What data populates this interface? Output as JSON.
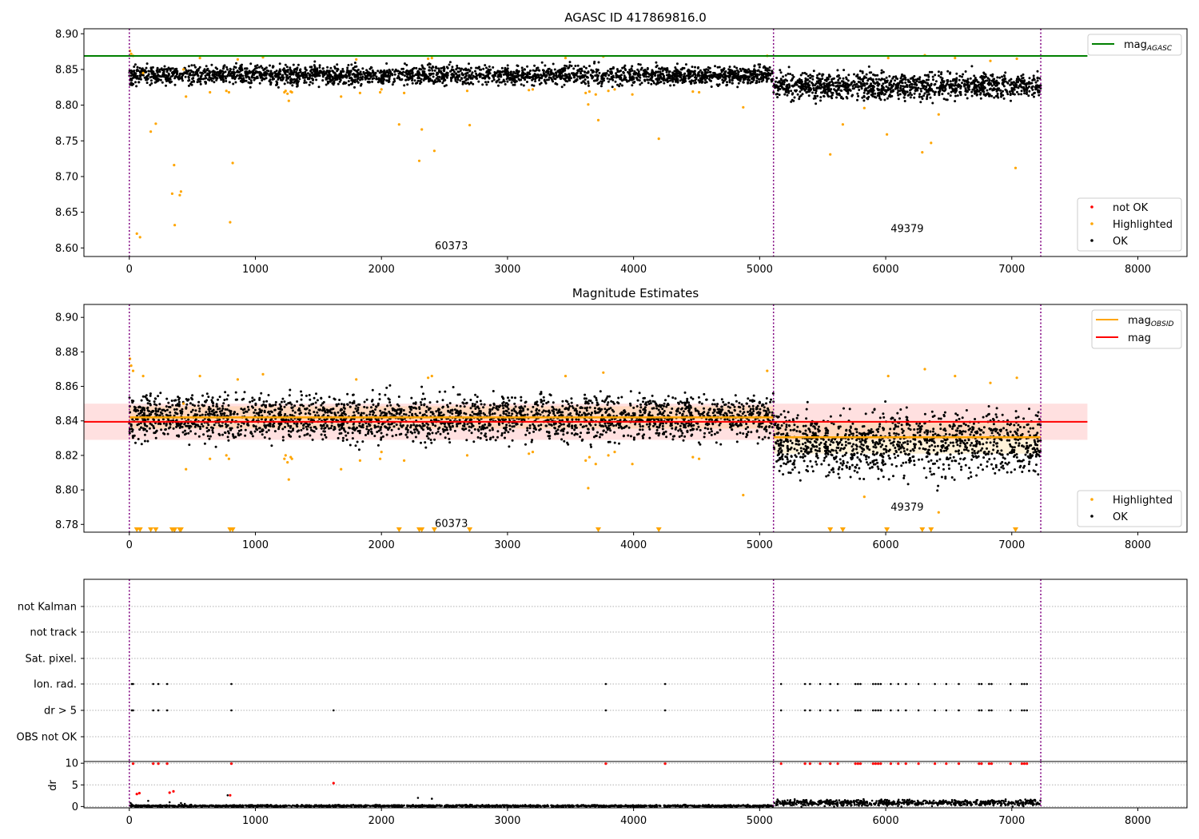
{
  "chart_data": [
    {
      "type": "scatter",
      "title": "AGASC ID 417869816.0",
      "xlim": [
        -360,
        8390
      ],
      "ylim": [
        8.588,
        8.907
      ],
      "xticks": [
        0,
        1000,
        2000,
        3000,
        4000,
        5000,
        6000,
        7000,
        8000
      ],
      "xtick_labels": [
        "0",
        "1000",
        "2000",
        "3000",
        "4000",
        "5000",
        "6000",
        "7000",
        "8000"
      ],
      "yticks": [
        8.6,
        8.65,
        8.7,
        8.75,
        8.8,
        8.85,
        8.9
      ],
      "ytick_labels": [
        "8.60",
        "8.65",
        "8.70",
        "8.75",
        "8.80",
        "8.85",
        "8.90"
      ],
      "obsid_boundaries": [
        0,
        5110,
        7230
      ],
      "obsid_labels": [
        {
          "text": "60373",
          "x": 2555,
          "y": 8.598
        },
        {
          "text": "49379",
          "x": 6170,
          "y": 8.622
        }
      ],
      "reference_line": {
        "name": "mag",
        "subscript": "AGASC",
        "y": 8.869,
        "x_end": 7600,
        "color": "#008000"
      },
      "legend_lines": [
        {
          "label": "mag",
          "subscript": "AGASC",
          "color": "#008000"
        }
      ],
      "legend_markers": [
        {
          "label": "not OK",
          "color": "#ff0000"
        },
        {
          "label": "Highlighted",
          "color": "#ffa500"
        },
        {
          "label": "OK",
          "color": "#000000"
        }
      ],
      "series": [
        {
          "name": "OK",
          "color": "#000000",
          "segments": [
            {
              "x0": 0,
              "x1": 5110,
              "mean": 8.842,
              "spread": 0.0065,
              "count": 2600
            },
            {
              "x0": 5110,
              "x1": 7230,
              "mean": 8.827,
              "spread": 0.009,
              "count": 1200
            }
          ]
        },
        {
          "name": "Highlighted",
          "color": "#ffa500",
          "x": [
            5,
            15,
            30,
            60,
            85,
            110,
            170,
            210,
            340,
            355,
            360,
            400,
            410,
            430,
            450,
            560,
            640,
            770,
            790,
            800,
            820,
            860,
            1060,
            1230,
            1240,
            1255,
            1265,
            1280,
            1290,
            1680,
            1800,
            1830,
            1990,
            2000,
            2140,
            2180,
            2300,
            2320,
            2370,
            2400,
            2420,
            2680,
            2700,
            3170,
            3200,
            3460,
            3620,
            3640,
            3650,
            3700,
            3720,
            3760,
            3800,
            3850,
            3990,
            4200,
            4470,
            4520,
            4870,
            5060,
            5560,
            5660,
            5830,
            6010,
            6020,
            6290,
            6310,
            6360,
            6420,
            6550,
            6830,
            7030,
            7040
          ],
          "y": [
            8.876,
            8.872,
            8.869,
            8.62,
            8.615,
            8.845,
            8.763,
            8.774,
            8.676,
            8.716,
            8.632,
            8.674,
            8.679,
            8.85,
            8.812,
            8.866,
            8.818,
            8.82,
            8.818,
            8.636,
            8.719,
            8.864,
            8.867,
            8.818,
            8.82,
            8.816,
            8.806,
            8.819,
            8.818,
            8.812,
            8.864,
            8.817,
            8.818,
            8.822,
            8.773,
            8.817,
            8.722,
            8.766,
            8.865,
            8.866,
            8.736,
            8.82,
            8.772,
            8.821,
            8.822,
            8.866,
            8.817,
            8.801,
            8.819,
            8.815,
            8.779,
            8.868,
            8.82,
            8.822,
            8.815,
            8.753,
            8.819,
            8.818,
            8.797,
            8.869,
            8.731,
            8.773,
            8.796,
            8.759,
            8.866,
            8.734,
            8.87,
            8.747,
            8.787,
            8.866,
            8.862,
            8.712,
            8.865
          ]
        }
      ]
    },
    {
      "type": "scatter",
      "title": "Magnitude Estimates",
      "xlim": [
        -360,
        8390
      ],
      "ylim": [
        8.7755,
        8.9075
      ],
      "xticks": [
        0,
        1000,
        2000,
        3000,
        4000,
        5000,
        6000,
        7000,
        8000
      ],
      "xtick_labels": [
        "0",
        "1000",
        "2000",
        "3000",
        "4000",
        "5000",
        "6000",
        "7000",
        "8000"
      ],
      "yticks": [
        8.78,
        8.8,
        8.82,
        8.84,
        8.86,
        8.88,
        8.9
      ],
      "ytick_labels": [
        "8.78",
        "8.80",
        "8.82",
        "8.84",
        "8.86",
        "8.88",
        "8.90"
      ],
      "obsid_boundaries": [
        0,
        5110,
        7230
      ],
      "obsid_labels": [
        {
          "text": "60373",
          "x": 2555,
          "y": 8.7785
        },
        {
          "text": "49379",
          "x": 6170,
          "y": 8.788
        }
      ],
      "mag_line": {
        "label": "mag",
        "y": 8.8395,
        "band": [
          8.829,
          8.85
        ],
        "x0": -360,
        "x1": 7600,
        "color": "#ff0000"
      },
      "obsid_mag": [
        {
          "x0": 0,
          "x1": 5110,
          "y": 8.842,
          "band": [
            8.8355,
            8.8485
          ]
        },
        {
          "x0": 5110,
          "x1": 7230,
          "y": 8.8305,
          "band": [
            8.821,
            8.84
          ]
        }
      ],
      "legend_lines": [
        {
          "label": "mag",
          "subscript": "OBSID",
          "color": "#ffa500"
        },
        {
          "label": "mag",
          "subscript": "",
          "color": "#ff0000"
        }
      ],
      "legend_markers": [
        {
          "label": "Highlighted",
          "color": "#ffa500"
        },
        {
          "label": "OK",
          "color": "#000000"
        }
      ],
      "series": [
        {
          "name": "OK",
          "color": "#000000",
          "segments": [
            {
              "x0": 0,
              "x1": 5110,
              "mean": 8.842,
              "spread": 0.0065,
              "count": 2600
            },
            {
              "x0": 5110,
              "x1": 7230,
              "mean": 8.827,
              "spread": 0.009,
              "count": 1200
            }
          ]
        },
        {
          "name": "Highlighted",
          "color": "#ffa500",
          "x": [
            5,
            15,
            30,
            110,
            430,
            450,
            560,
            640,
            770,
            790,
            860,
            1060,
            1230,
            1240,
            1255,
            1265,
            1280,
            1290,
            1680,
            1800,
            1830,
            1990,
            2000,
            2180,
            2370,
            2400,
            2680,
            3170,
            3200,
            3460,
            3620,
            3640,
            3650,
            3700,
            3760,
            3800,
            3850,
            3990,
            4470,
            4520,
            4870,
            5060,
            5830,
            6020,
            6310,
            6420,
            6550,
            6830,
            7040
          ],
          "y": [
            8.876,
            8.872,
            8.869,
            8.866,
            8.85,
            8.812,
            8.866,
            8.818,
            8.82,
            8.818,
            8.864,
            8.867,
            8.818,
            8.82,
            8.816,
            8.806,
            8.819,
            8.818,
            8.812,
            8.864,
            8.817,
            8.818,
            8.822,
            8.817,
            8.865,
            8.866,
            8.82,
            8.821,
            8.822,
            8.866,
            8.817,
            8.801,
            8.819,
            8.815,
            8.868,
            8.82,
            8.822,
            8.815,
            8.819,
            8.818,
            8.797,
            8.869,
            8.796,
            8.866,
            8.87,
            8.787,
            8.866,
            8.862,
            8.865
          ]
        },
        {
          "name": "Highlighted (below axis)",
          "color": "#ffa500",
          "x": [
            60,
            85,
            170,
            210,
            340,
            355,
            360,
            400,
            410,
            800,
            820,
            2140,
            2300,
            2320,
            2420,
            2700,
            3720,
            4200,
            5560,
            5660,
            6010,
            6290,
            6360,
            7030
          ],
          "y": [
            8.7765,
            8.7765,
            8.7765,
            8.7765,
            8.7765,
            8.7765,
            8.7765,
            8.7765,
            8.7765,
            8.7765,
            8.7765,
            8.7765,
            8.7765,
            8.7765,
            8.7765,
            8.7765,
            8.7765,
            8.7765,
            8.7765,
            8.7765,
            8.7765,
            8.7765,
            8.7765,
            8.7765
          ]
        }
      ]
    },
    {
      "type": "scatter",
      "title": "",
      "xlim": [
        -360,
        8390
      ],
      "category_labels": [
        "not Kalman",
        "not track",
        "Sat. pixel.",
        "Ion. rad.",
        "dr > 5",
        "OBS not OK"
      ],
      "obsid_boundaries": [
        0,
        5110,
        7230
      ],
      "flags": {
        "Ion. rad.": [
          20,
          30,
          190,
          230,
          300,
          810,
          3780,
          4250,
          5170,
          5360,
          5400,
          5480,
          5560,
          5620,
          5760,
          5780,
          5800,
          5900,
          5920,
          5940,
          5960,
          6040,
          6100,
          6160,
          6260,
          6390,
          6480,
          6580,
          6740,
          6760,
          6820,
          6840,
          6990,
          7080,
          7100,
          7120
        ],
        "dr > 5": [
          20,
          30,
          190,
          230,
          300,
          810,
          1620,
          3780,
          4250,
          5170,
          5360,
          5400,
          5480,
          5560,
          5620,
          5760,
          5780,
          5800,
          5900,
          5920,
          5940,
          5960,
          6040,
          6100,
          6160,
          6260,
          6390,
          6480,
          6580,
          6740,
          6760,
          6820,
          6840,
          6990,
          7080,
          7100,
          7120
        ]
      }
    },
    {
      "type": "scatter",
      "title": "",
      "ylabel": "dr",
      "xlim": [
        -360,
        8390
      ],
      "ylim": [
        -0.3,
        10.4
      ],
      "yticks": [
        0,
        5,
        10
      ],
      "ytick_labels": [
        "0",
        "5",
        "10"
      ],
      "xticks": [
        0,
        1000,
        2000,
        3000,
        4000,
        5000,
        6000,
        7000,
        8000
      ],
      "xtick_labels": [
        "0",
        "1000",
        "2000",
        "3000",
        "4000",
        "5000",
        "6000",
        "7000",
        "8000"
      ],
      "obsid_boundaries": [
        0,
        5110,
        7230
      ],
      "series": [
        {
          "name": "OK",
          "color": "#000000",
          "segments": [
            {
              "x0": 0,
              "x1": 5110,
              "mean": 0.15,
              "spread": 0.1,
              "count": 1600
            },
            {
              "x0": 5110,
              "x1": 7230,
              "mean": 0.9,
              "spread": 0.35,
              "count": 700
            }
          ],
          "extra_x": [
            10,
            20,
            150,
            320,
            410,
            440,
            780,
            2290,
            2400
          ],
          "extra_y": [
            0.8,
            0.5,
            1.3,
            1.0,
            0.8,
            0.6,
            2.6,
            2.0,
            1.8
          ]
        },
        {
          "name": "not OK",
          "color": "#ff0000",
          "x": [
            30,
            60,
            80,
            190,
            230,
            300,
            320,
            350,
            800,
            810,
            1620,
            3780,
            4250,
            5170,
            5360,
            5400,
            5480,
            5560,
            5620,
            5760,
            5780,
            5800,
            5900,
            5920,
            5940,
            5960,
            6040,
            6100,
            6160,
            6260,
            6390,
            6480,
            6580,
            6740,
            6760,
            6820,
            6840,
            6990,
            7080,
            7100,
            7120
          ],
          "y": [
            9.9,
            2.9,
            3.1,
            9.9,
            9.9,
            9.9,
            3.2,
            3.5,
            2.6,
            9.9,
            5.4,
            9.9,
            9.9,
            9.9,
            9.9,
            9.9,
            9.9,
            9.9,
            9.9,
            9.9,
            9.9,
            9.9,
            9.9,
            9.9,
            9.9,
            9.9,
            9.9,
            9.9,
            9.9,
            9.9,
            9.9,
            9.9,
            9.9,
            9.9,
            9.9,
            9.9,
            9.9,
            9.9,
            9.9,
            9.9,
            9.9
          ]
        }
      ]
    }
  ]
}
